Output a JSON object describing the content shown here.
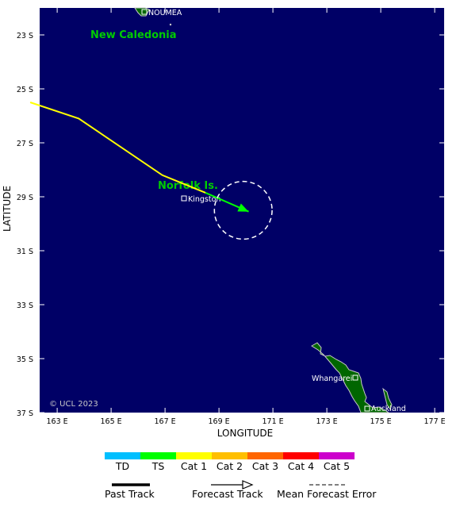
{
  "map": {
    "places": {
      "new_caledonia": "New Caledonia",
      "noumea": "NOUMEA",
      "norfolk": "Norfolk Is.",
      "kingston": "Kingston",
      "whangarei": "Whangarei",
      "auckland": "Auckland"
    },
    "copyright": "© UCL 2023",
    "x_axis_title": "LONGITUDE",
    "y_axis_title": "LATITUDE",
    "lon_ticks": [
      "163 E",
      "165 E",
      "167 E",
      "169 E",
      "171 E",
      "173 E",
      "175 E",
      "177 E"
    ],
    "lat_ticks": [
      "23 S",
      "25 S",
      "27 S",
      "29 S",
      "31 S",
      "33 S",
      "35 S",
      "37 S"
    ],
    "colors": {
      "ocean": "#000066",
      "land": "#006600",
      "label_green": "#00cc00",
      "past_track": "#ffff00",
      "forecast_track": "#00ff00",
      "error_circle": "#ffffff"
    }
  },
  "track": {
    "past_points": [
      [
        162.0,
        25.5
      ],
      [
        163.8,
        26.1
      ],
      [
        166.9,
        28.2
      ],
      [
        168.5,
        28.85
      ]
    ],
    "forecast_points": [
      [
        168.5,
        28.85
      ],
      [
        170.1,
        29.55
      ]
    ],
    "error_circle": {
      "center": [
        169.9,
        29.5
      ],
      "radius_deg": 1.07
    }
  },
  "legend": {
    "categories": [
      {
        "label": "TD",
        "color": "#00bfff"
      },
      {
        "label": "TS",
        "color": "#00ff00"
      },
      {
        "label": "Cat 1",
        "color": "#ffff00"
      },
      {
        "label": "Cat 2",
        "color": "#ffbf00"
      },
      {
        "label": "Cat 3",
        "color": "#ff6600"
      },
      {
        "label": "Cat 4",
        "color": "#ff0000"
      },
      {
        "label": "Cat 5",
        "color": "#cc00cc"
      }
    ],
    "past_track": "Past Track",
    "forecast_track": "Forecast Track",
    "mean_error": "Mean Forecast Error"
  }
}
